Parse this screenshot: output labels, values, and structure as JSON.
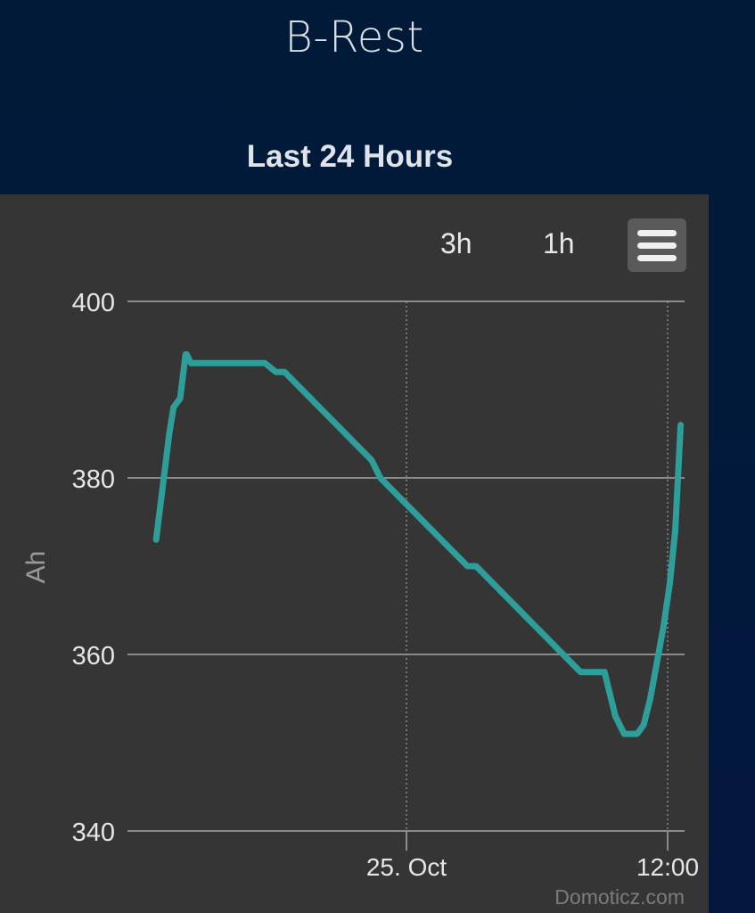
{
  "app": {
    "title": "B-Rest",
    "subtitle": "Last 24 Hours"
  },
  "toolbar": {
    "zoom_buttons": [
      "3h",
      "1h"
    ],
    "menu_icon": "hamburger-menu-icon"
  },
  "credit": "Domoticz.com",
  "colors": {
    "background_top": "#011a38",
    "panel": "#353535",
    "series": "#2e9e9a",
    "grid": "#8a8a8a",
    "text": "#e0e0e0"
  },
  "chart_data": {
    "type": "line",
    "title": "Last 24 Hours",
    "ylabel": "Ah",
    "xlabel": "",
    "ylim": [
      340,
      400
    ],
    "yticks": [
      400,
      380,
      360,
      340
    ],
    "xticks": [
      {
        "label": "25. Oct",
        "hours": 0
      },
      {
        "label": "12:00",
        "hours": 12
      }
    ],
    "x_unit": "hours relative to 25. Oct 00:00",
    "grid": true,
    "legend": "none",
    "series": [
      {
        "x": [
          -11.5,
          -11.4,
          -11.25,
          -11.1,
          -10.9,
          -10.7,
          -10.4,
          -10.15,
          -10.1,
          -9.9,
          -9.5,
          -9.0,
          -8.0,
          -7.0,
          -6.5,
          -6.0,
          -5.6,
          -5.2,
          -4.8,
          -4.4,
          -4.0,
          -3.6,
          -3.2,
          -2.8,
          -2.4,
          -2.0,
          -1.6,
          -1.2,
          -0.8,
          -0.4,
          0.0,
          0.4,
          0.8,
          1.2,
          1.6,
          2.0,
          2.4,
          2.8,
          3.2,
          3.6,
          4.0,
          4.4,
          4.8,
          5.2,
          5.6,
          6.0,
          6.4,
          6.8,
          7.2,
          7.6,
          8.0,
          8.4,
          8.8,
          9.1,
          9.4,
          9.6,
          9.8,
          10.0,
          10.3,
          10.6,
          10.9,
          11.2,
          11.5,
          11.8,
          12.1,
          12.35,
          12.6
        ],
        "values": [
          373,
          375,
          378,
          381,
          385,
          388,
          389,
          394,
          394,
          393,
          393,
          393,
          393,
          393,
          393,
          392,
          392,
          391,
          390,
          389,
          388,
          387,
          386,
          385,
          384,
          383,
          382,
          380,
          379,
          378,
          377,
          376,
          375,
          374,
          373,
          372,
          371,
          370,
          370,
          369,
          368,
          367,
          366,
          365,
          364,
          363,
          362,
          361,
          360,
          359,
          358,
          358,
          358,
          358,
          355,
          353,
          352,
          351,
          351,
          351,
          352,
          355,
          359,
          363,
          368,
          374,
          386
        ]
      }
    ]
  }
}
